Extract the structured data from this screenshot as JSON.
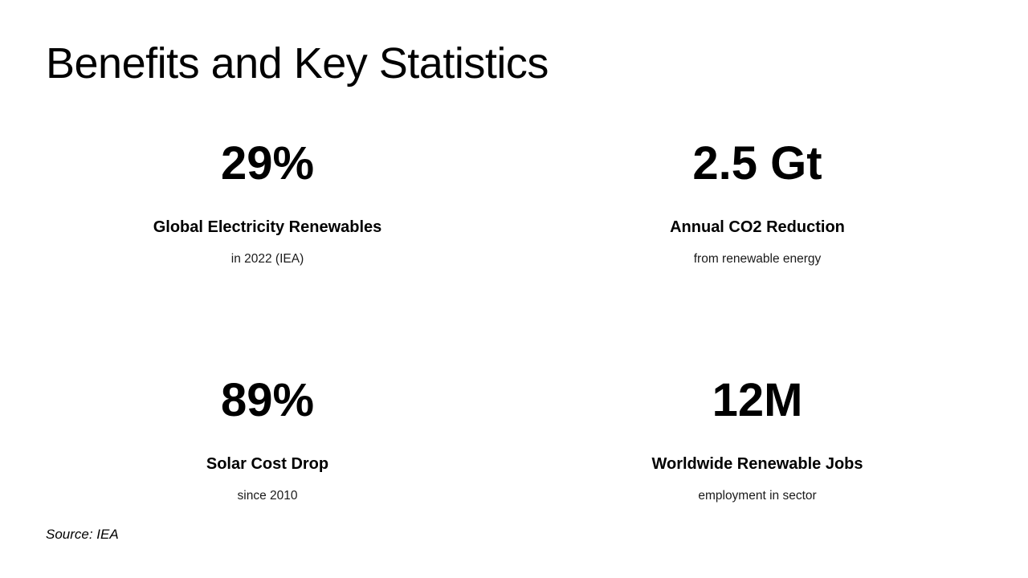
{
  "slide": {
    "title": "Benefits and Key Statistics",
    "source": "Source: IEA",
    "background_color": "#ffffff",
    "text_color": "#000000"
  },
  "stats": [
    {
      "value": "29%",
      "label": "Global Electricity Renewables",
      "sub": "in 2022 (IEA)"
    },
    {
      "value": "2.5 Gt",
      "label": "Annual CO2 Reduction",
      "sub": "from renewable energy"
    },
    {
      "value": "89%",
      "label": "Solar Cost Drop",
      "sub": "since 2010"
    },
    {
      "value": "12M",
      "label": "Worldwide Renewable Jobs",
      "sub": "employment in sector"
    }
  ]
}
